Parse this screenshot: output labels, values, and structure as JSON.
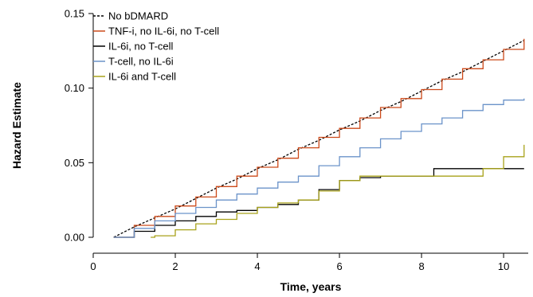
{
  "chart_data": {
    "type": "line",
    "xlabel": "Time, years",
    "ylabel": "Hazard Estimate",
    "xlim": [
      0,
      10.6
    ],
    "ylim": [
      0,
      0.15
    ],
    "x_ticks": [
      0,
      2,
      4,
      6,
      8,
      10
    ],
    "y_ticks": [
      0.0,
      0.05,
      0.1,
      0.15
    ],
    "x_tick_labels": [
      "0",
      "2",
      "4",
      "6",
      "8",
      "10"
    ],
    "y_tick_labels": [
      "0.00",
      "0.05",
      "0.10",
      "0.15"
    ],
    "grid": false,
    "legend_position": "top-left",
    "series": [
      {
        "name": "No bDMARD",
        "color": "#000000",
        "style": "dashed",
        "step": false,
        "x": [
          0.5,
          1,
          1.5,
          2,
          2.5,
          3,
          3.5,
          4,
          4.5,
          5,
          5.5,
          6,
          6.5,
          7,
          7.5,
          8,
          8.5,
          9,
          9.5,
          10,
          10.5
        ],
        "y": [
          0.0,
          0.007,
          0.013,
          0.019,
          0.026,
          0.033,
          0.039,
          0.046,
          0.052,
          0.059,
          0.065,
          0.072,
          0.078,
          0.085,
          0.091,
          0.098,
          0.105,
          0.111,
          0.118,
          0.125,
          0.132
        ]
      },
      {
        "name": "TNF-i, no IL-6i, no T-cell",
        "color": "#cc4a1a",
        "style": "solid",
        "step": true,
        "x": [
          0.5,
          1,
          1.5,
          2,
          2.5,
          3,
          3.5,
          4,
          4.5,
          5,
          5.5,
          6,
          6.5,
          7,
          7.5,
          8,
          8.5,
          9,
          9.5,
          10,
          10.5
        ],
        "y": [
          0.0,
          0.008,
          0.014,
          0.021,
          0.027,
          0.034,
          0.041,
          0.047,
          0.053,
          0.06,
          0.067,
          0.073,
          0.08,
          0.087,
          0.093,
          0.099,
          0.106,
          0.113,
          0.119,
          0.126,
          0.133
        ]
      },
      {
        "name": "IL-6i, no T-cell",
        "color": "#000000",
        "style": "solid",
        "step": true,
        "x": [
          0.5,
          1,
          1.5,
          2,
          2.5,
          3,
          3.5,
          4,
          4.5,
          5,
          5.5,
          6,
          6.5,
          7,
          7.5,
          8,
          8.3,
          8.5,
          9,
          9.5,
          10,
          10.5
        ],
        "y": [
          0.0,
          0.004,
          0.008,
          0.011,
          0.014,
          0.017,
          0.018,
          0.02,
          0.022,
          0.025,
          0.032,
          0.038,
          0.04,
          0.041,
          0.041,
          0.041,
          0.046,
          0.046,
          0.046,
          0.046,
          0.046,
          0.046
        ]
      },
      {
        "name": "T-cell, no IL-6i",
        "color": "#6b93c9",
        "style": "solid",
        "step": true,
        "x": [
          0.5,
          1,
          1.5,
          2,
          2.5,
          3,
          3.5,
          4,
          4.5,
          5,
          5.5,
          6,
          6.5,
          7,
          7.5,
          8,
          8.5,
          9,
          9.5,
          10,
          10.5
        ],
        "y": [
          0.0,
          0.006,
          0.011,
          0.016,
          0.02,
          0.025,
          0.029,
          0.033,
          0.037,
          0.041,
          0.048,
          0.054,
          0.06,
          0.066,
          0.071,
          0.076,
          0.08,
          0.085,
          0.089,
          0.092,
          0.093
        ]
      },
      {
        "name": "IL-6i and T-cell",
        "color": "#a8a21a",
        "style": "solid",
        "step": true,
        "x": [
          1.4,
          1.5,
          2,
          2.5,
          3,
          3.5,
          4,
          4.5,
          5,
          5.5,
          6,
          6.5,
          7,
          7.5,
          8,
          8.5,
          9,
          9.5,
          10,
          10.5
        ],
        "y": [
          0.0,
          0.001,
          0.005,
          0.009,
          0.012,
          0.016,
          0.02,
          0.023,
          0.025,
          0.031,
          0.038,
          0.041,
          0.041,
          0.041,
          0.041,
          0.041,
          0.041,
          0.046,
          0.054,
          0.062
        ]
      }
    ]
  }
}
